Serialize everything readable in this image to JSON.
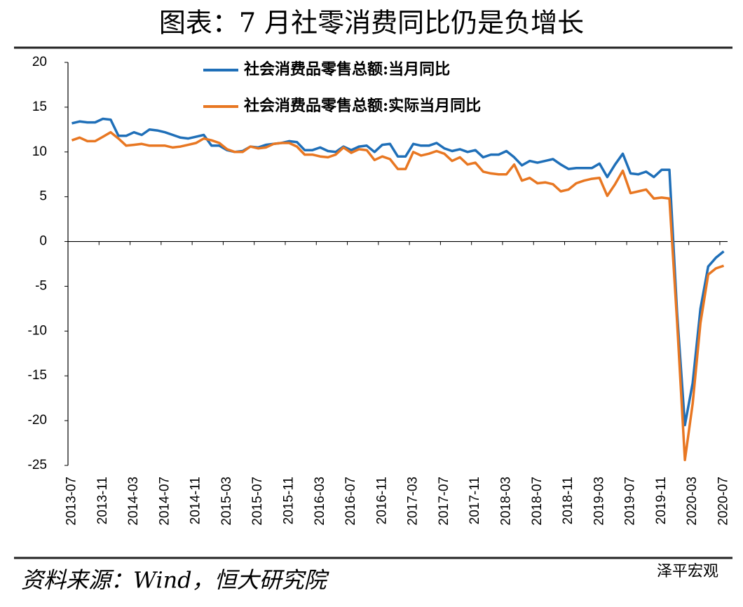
{
  "title": "图表：7 月社零消费同比仍是负增长",
  "source": "资料来源：Wind，恒大研究院",
  "watermark": "泽平宏观",
  "chart_data": {
    "type": "line",
    "categories": [
      "2013-07",
      null,
      null,
      null,
      "2013-11",
      null,
      null,
      null,
      "2014-03",
      null,
      null,
      null,
      "2014-07",
      null,
      null,
      null,
      "2014-11",
      null,
      null,
      null,
      "2015-03",
      null,
      null,
      null,
      "2015-07",
      null,
      null,
      null,
      "2015-11",
      null,
      null,
      null,
      "2016-03",
      null,
      null,
      null,
      "2016-07",
      null,
      null,
      null,
      "2016-11",
      null,
      null,
      null,
      "2017-03",
      null,
      null,
      null,
      "2017-07",
      null,
      null,
      null,
      "2017-11",
      null,
      null,
      null,
      "2018-03",
      null,
      null,
      null,
      "2018-07",
      null,
      null,
      null,
      "2018-11",
      null,
      null,
      null,
      "2019-03",
      null,
      null,
      null,
      "2019-07",
      null,
      null,
      null,
      "2019-11",
      null,
      null,
      null,
      "2020-03",
      null,
      null,
      null,
      "2020-07"
    ],
    "series": [
      {
        "name": "社会消费品零售总额:当月同比",
        "color": "#1f6fb8",
        "values": [
          13.2,
          13.4,
          13.3,
          13.3,
          13.7,
          13.6,
          11.8,
          11.8,
          12.2,
          11.9,
          12.5,
          12.4,
          12.2,
          11.9,
          11.6,
          11.5,
          11.7,
          11.9,
          10.7,
          10.7,
          10.2,
          10.0,
          10.1,
          10.6,
          10.5,
          10.8,
          10.9,
          11.0,
          11.2,
          11.1,
          10.2,
          10.2,
          10.5,
          10.1,
          10.0,
          10.6,
          10.2,
          10.6,
          10.7,
          10.0,
          10.8,
          10.9,
          9.5,
          9.5,
          10.9,
          10.7,
          10.7,
          11.0,
          10.4,
          10.1,
          10.3,
          10.0,
          10.2,
          9.4,
          9.7,
          9.7,
          10.1,
          9.4,
          8.5,
          9.0,
          8.8,
          9.0,
          9.2,
          8.6,
          8.1,
          8.2,
          8.2,
          8.2,
          8.7,
          7.2,
          8.6,
          9.8,
          7.6,
          7.5,
          7.8,
          7.2,
          8.0,
          8.0,
          -8.0,
          -20.5,
          -15.8,
          -7.5,
          -2.8,
          -1.8,
          -1.1
        ]
      },
      {
        "name": "社会消费品零售总额:实际当月同比",
        "color": "#e87722",
        "values": [
          11.3,
          11.6,
          11.2,
          11.2,
          11.7,
          12.2,
          11.5,
          10.7,
          10.8,
          10.9,
          10.7,
          10.7,
          10.7,
          10.5,
          10.6,
          10.8,
          11.0,
          11.5,
          11.3,
          11.0,
          10.3,
          10.0,
          10.0,
          10.6,
          10.4,
          10.5,
          10.9,
          11.0,
          11.0,
          10.6,
          9.7,
          9.7,
          9.5,
          9.4,
          9.7,
          10.5,
          9.9,
          10.3,
          10.2,
          9.1,
          9.5,
          9.2,
          8.1,
          8.1,
          10.0,
          9.6,
          9.8,
          10.1,
          9.8,
          9.0,
          9.4,
          8.6,
          8.8,
          7.8,
          7.6,
          7.5,
          7.5,
          8.6,
          6.8,
          7.1,
          6.5,
          6.6,
          6.4,
          5.6,
          5.8,
          6.5,
          6.8,
          7.0,
          7.1,
          5.1,
          6.4,
          7.9,
          5.4,
          5.6,
          5.8,
          4.8,
          4.9,
          4.8,
          -9.0,
          -24.4,
          -18.1,
          -9.1,
          -3.7,
          -3.0,
          -2.7
        ]
      }
    ],
    "ylim": [
      -25,
      20
    ],
    "yticks": [
      -25,
      -20,
      -15,
      -10,
      -5,
      0,
      5,
      10,
      15,
      20
    ],
    "grid": false,
    "legend": "top"
  }
}
